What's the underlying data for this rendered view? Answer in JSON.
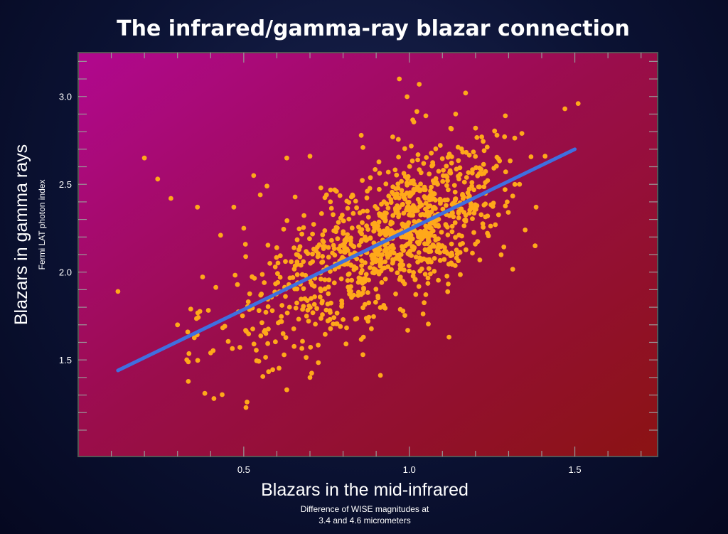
{
  "chart_data": {
    "type": "scatter",
    "title": "The infrared/gamma-ray blazar connection",
    "xlabel": "Blazars in the mid-infrared",
    "xlabel_sub": [
      "Difference of WISE magnitudes at",
      "3.4 and 4.6 micrometers"
    ],
    "ylabel": "Blazars in gamma rays",
    "ylabel_sub": "Fermi LAT photon index",
    "xlim": [
      0.0,
      1.75
    ],
    "ylim": [
      0.95,
      3.25
    ],
    "x_ticks": [
      0.5,
      1.0,
      1.5
    ],
    "x_tick_labels": [
      "0.5",
      "1.0",
      "1.5"
    ],
    "y_ticks": [
      1.5,
      2.0,
      2.5,
      3.0
    ],
    "y_tick_labels": [
      "1.5",
      "2.0",
      "2.5",
      "3.0"
    ],
    "grid": false,
    "legend": "none",
    "colors": {
      "points": "#ffa81a",
      "fit_line": "#3f6fe0",
      "plot_top_left": "#b1088f",
      "plot_bottom_right": "#8b1313",
      "frame": "#555555"
    },
    "fit_line": {
      "x": [
        0.12,
        1.5
      ],
      "y": [
        1.44,
        2.7
      ]
    },
    "point_count_estimate": 1050,
    "points": [
      [
        0.12,
        1.89
      ],
      [
        0.2,
        2.65
      ],
      [
        0.24,
        2.53
      ],
      [
        0.28,
        2.42
      ],
      [
        0.3,
        1.7
      ],
      [
        0.34,
        1.79
      ],
      [
        0.36,
        2.37
      ],
      [
        0.4,
        1.54
      ],
      [
        0.41,
        1.28
      ],
      [
        0.43,
        2.21
      ],
      [
        0.47,
        2.37
      ],
      [
        0.5,
        2.25
      ],
      [
        0.51,
        1.26
      ],
      [
        0.53,
        2.55
      ],
      [
        0.55,
        2.44
      ],
      [
        0.57,
        2.49
      ],
      [
        0.63,
        1.33
      ],
      [
        0.63,
        2.65
      ],
      [
        0.7,
        2.66
      ],
      [
        0.7,
        1.4
      ],
      [
        0.75,
        2.44
      ],
      [
        0.78,
        2.46
      ],
      [
        0.86,
        2.71
      ],
      [
        0.86,
        1.53
      ],
      [
        0.95,
        2.77
      ],
      [
        0.97,
        3.1
      ],
      [
        1.03,
        3.07
      ],
      [
        1.05,
        2.89
      ],
      [
        1.12,
        1.63
      ],
      [
        1.14,
        2.9
      ],
      [
        1.17,
        3.02
      ],
      [
        1.2,
        2.82
      ],
      [
        1.26,
        2.27
      ],
      [
        1.29,
        2.89
      ],
      [
        1.34,
        2.79
      ],
      [
        1.35,
        2.24
      ],
      [
        1.38,
        2.15
      ],
      [
        1.41,
        2.66
      ],
      [
        1.47,
        2.93
      ],
      [
        1.51,
        2.96
      ]
    ]
  }
}
